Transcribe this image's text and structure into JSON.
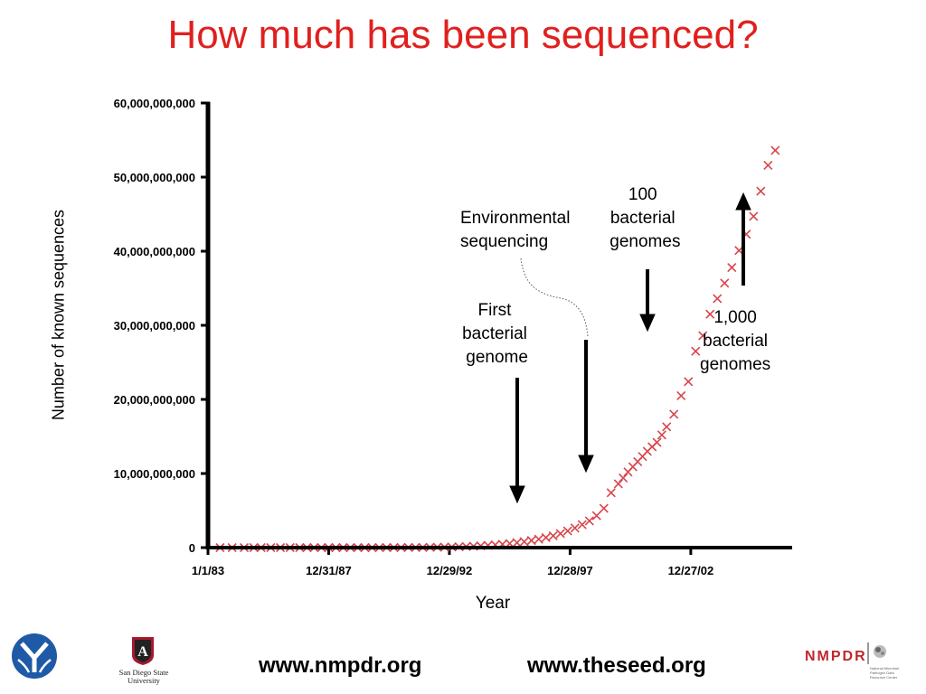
{
  "title": "How much has been sequenced?",
  "chart_data": {
    "type": "scatter",
    "title": "How much has been sequenced?",
    "xlabel": "Year",
    "ylabel": "Number of known sequences",
    "x_ticks": [
      "1/1/83",
      "12/31/87",
      "12/29/92",
      "12/28/97",
      "12/27/02"
    ],
    "y_ticks": [
      "0",
      "10,000,000,000",
      "20,000,000,000",
      "30,000,000,000",
      "40,000,000,000",
      "50,000,000,000",
      "60,000,000,000"
    ],
    "ylim": [
      0,
      60000000000
    ],
    "xlim": [
      1983.0,
      2007.2
    ],
    "marker": "x",
    "marker_color": "#d8444a",
    "series": [
      {
        "x": [
          1983.5,
          1984.0,
          1984.5,
          1984.9,
          1985.2,
          1985.6,
          1986.0,
          1986.4,
          1986.8,
          1987.1,
          1987.4,
          1987.7,
          1988.0,
          1988.3,
          1988.6,
          1988.9,
          1989.2,
          1989.5,
          1989.8,
          1990.1,
          1990.4,
          1990.7,
          1991.0,
          1991.3,
          1991.6,
          1991.9,
          1992.2,
          1992.5,
          1992.8,
          1993.1,
          1993.4,
          1993.7,
          1994.0,
          1994.3,
          1994.6,
          1994.9,
          1995.2,
          1995.5,
          1995.8,
          1996.1,
          1996.4,
          1996.7,
          1997.0,
          1997.3,
          1997.6,
          1997.9,
          1998.2,
          1998.5,
          1998.8,
          1999.1,
          1999.4,
          1999.7,
          2000.0,
          2000.2,
          2000.4,
          2000.6,
          2000.8,
          2001.0,
          2001.2,
          2001.4,
          2001.6,
          2001.8,
          2002.0,
          2002.3,
          2002.6,
          2002.9,
          2003.2,
          2003.5,
          2003.8,
          2004.1,
          2004.4,
          2004.7,
          2005.0,
          2005.3,
          2005.6,
          2005.9,
          2006.2,
          2006.5
        ],
        "y": [
          0.0,
          0.0,
          0.0,
          0.0,
          0.0,
          0.0,
          0.0,
          0.0,
          0.0,
          0.0,
          0.0,
          0.0,
          0.0,
          0.0,
          0.0,
          0.0,
          0.0,
          0.0,
          0.0,
          0.01,
          0.01,
          0.01,
          0.01,
          0.02,
          0.02,
          0.03,
          0.04,
          0.05,
          0.07,
          0.09,
          0.12,
          0.15,
          0.19,
          0.24,
          0.3,
          0.37,
          0.45,
          0.55,
          0.67,
          0.8,
          0.96,
          1.14,
          1.35,
          1.6,
          1.9,
          2.25,
          2.65,
          3.1,
          3.6,
          4.3,
          5.3,
          7.4,
          8.6,
          9.4,
          10.2,
          10.9,
          11.6,
          12.3,
          13.0,
          13.6,
          14.2,
          15.2,
          16.3,
          18.0,
          20.5,
          22.4,
          26.5,
          28.6,
          31.5,
          33.6,
          35.7,
          37.8,
          40.1,
          42.3,
          44.7,
          48.1,
          51.6,
          53.6
        ],
        "y_unit": "billions"
      }
    ],
    "annotations": [
      {
        "text": "First\nbacterial\n genome",
        "arrow": "down"
      },
      {
        "text": "Environmental\nsequencing",
        "arrow": "down"
      },
      {
        "text": "100\nbacterial\n genomes",
        "arrow": "down"
      },
      {
        "text": "1,000\nbacterial\ngenomes",
        "arrow": "up"
      }
    ]
  },
  "footer": {
    "url1": "www.nmpdr.org",
    "url2": "www.theseed.org",
    "university": "San Diego State\nUniversity",
    "nmpdr_logo": "NMPDR",
    "nmpdr_sub": "National Microbial\nPathogen Data\nResource Center"
  },
  "colors": {
    "title": "#e0201e",
    "marker": "#d8444a",
    "nmpdr": "#c0272d",
    "ylogo": "#1f5aa6"
  },
  "icons": [
    "y-logo-icon",
    "sdsu-logo-icon",
    "nmpdr-logo-icon"
  ]
}
